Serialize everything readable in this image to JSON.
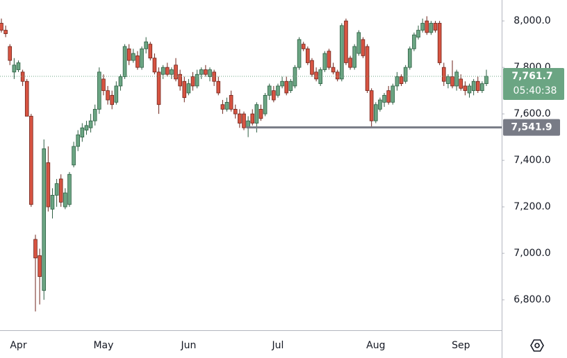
{
  "chart_data": {
    "type": "candlestick",
    "categories": [
      null,
      null,
      null,
      null,
      "Apr",
      null,
      null,
      null,
      null,
      null,
      null,
      null,
      null,
      null,
      null,
      null,
      null,
      null,
      null,
      null,
      null,
      null,
      null,
      null,
      "May",
      null,
      null,
      null,
      null,
      null,
      null,
      null,
      null,
      null,
      null,
      null,
      null,
      null,
      null,
      null,
      null,
      null,
      null,
      null,
      "Jun",
      null,
      null,
      null,
      null,
      null,
      null,
      null,
      null,
      null,
      null,
      null,
      null,
      null,
      null,
      null,
      null,
      null,
      null,
      null,
      null,
      "Jul",
      null,
      null,
      null,
      null,
      null,
      null,
      null,
      null,
      null,
      null,
      null,
      null,
      null,
      null,
      null,
      null,
      null,
      null,
      null,
      null,
      null,
      null,
      "Aug",
      null,
      null,
      null,
      null,
      null,
      null,
      null,
      null,
      null,
      null,
      null,
      null,
      null,
      null,
      null,
      null,
      null,
      null,
      null,
      "Sep",
      null,
      null,
      null,
      null,
      null,
      null
    ],
    "open": [
      7990,
      7960,
      7890,
      7780,
      7790,
      7780,
      7740,
      7590,
      7060,
      6990,
      6840,
      7390,
      7190,
      7250,
      7320,
      7200,
      7210,
      7380,
      7460,
      7500,
      7530,
      7540,
      7570,
      7620,
      7750,
      7700,
      7680,
      7650,
      7720,
      7760,
      7880,
      7830,
      7850,
      7800,
      7880,
      7900,
      7840,
      7780,
      7770,
      7800,
      7770,
      7810,
      7770,
      7740,
      7690,
      7760,
      7720,
      7770,
      7790,
      7760,
      7780,
      7740,
      7640,
      7620,
      7680,
      7620,
      7600,
      7600,
      7540,
      7600,
      7560,
      7620,
      7600,
      7680,
      7700,
      7680,
      7720,
      7740,
      7700,
      7720,
      7800,
      7900,
      7880,
      7830,
      7780,
      7730,
      7790,
      7870,
      7800,
      7780,
      7750,
      8000,
      7840,
      7800,
      7860,
      7920,
      7890,
      7700,
      7570,
      7620,
      7650,
      7700,
      7650,
      7720,
      7760,
      7740,
      7800,
      7880,
      7930,
      7960,
      8000,
      7950,
      7990,
      7990,
      7800,
      7730,
      7760,
      7720,
      7750,
      7720,
      7690,
      7700,
      7740,
      7700,
      7730
    ],
    "high": [
      8010,
      7980,
      7900,
      7840,
      7830,
      7790,
      7750,
      7600,
      7080,
      7020,
      7490,
      7460,
      7280,
      7320,
      7340,
      7280,
      7350,
      7480,
      7530,
      7560,
      7570,
      7600,
      7640,
      7800,
      7770,
      7720,
      7700,
      7740,
      7770,
      7900,
      7900,
      7880,
      7870,
      7890,
      7930,
      7910,
      7860,
      7800,
      7810,
      7820,
      7800,
      7840,
      7790,
      7760,
      7750,
      7780,
      7790,
      7800,
      7810,
      7800,
      7790,
      7760,
      7660,
      7670,
      7700,
      7640,
      7620,
      7610,
      7590,
      7620,
      7650,
      7640,
      7690,
      7730,
      7720,
      7730,
      7760,
      7760,
      7750,
      7810,
      7930,
      7910,
      7890,
      7840,
      7800,
      7800,
      7870,
      7880,
      7820,
      7790,
      7990,
      8010,
      7850,
      7900,
      7960,
      7930,
      7900,
      7710,
      7650,
      7670,
      7690,
      7720,
      7730,
      7780,
      7770,
      7810,
      7890,
      7950,
      7980,
      8010,
      8020,
      8000,
      8000,
      8000,
      7820,
      7770,
      7830,
      7790,
      7770,
      7740,
      7730,
      7750,
      7760,
      7740,
      7790
    ],
    "low": [
      7950,
      7930,
      7810,
      7750,
      7780,
      7720,
      7590,
      7200,
      6750,
      6780,
      6800,
      7180,
      7150,
      7200,
      7200,
      7190,
      7200,
      7370,
      7440,
      7480,
      7510,
      7520,
      7550,
      7600,
      7680,
      7640,
      7620,
      7640,
      7700,
      7750,
      7810,
      7820,
      7790,
      7790,
      7860,
      7830,
      7770,
      7600,
      7750,
      7760,
      7750,
      7740,
      7700,
      7650,
      7680,
      7700,
      7710,
      7750,
      7760,
      7740,
      7720,
      7680,
      7600,
      7610,
      7610,
      7580,
      7540,
      7530,
      7500,
      7550,
      7520,
      7570,
      7590,
      7660,
      7650,
      7670,
      7710,
      7680,
      7690,
      7710,
      7790,
      7870,
      7810,
      7760,
      7740,
      7720,
      7780,
      7790,
      7770,
      7740,
      7740,
      7810,
      7790,
      7790,
      7850,
      7840,
      7690,
      7540,
      7560,
      7610,
      7630,
      7640,
      7640,
      7700,
      7720,
      7730,
      7790,
      7870,
      7920,
      7950,
      7940,
      7940,
      7950,
      7810,
      7720,
      7710,
      7710,
      7700,
      7700,
      7680,
      7670,
      7680,
      7690,
      7690,
      7720
    ],
    "close": [
      7960,
      7945,
      7830,
      7810,
      7820,
      7740,
      7590,
      7210,
      6980,
      6900,
      7450,
      7200,
      7250,
      7300,
      7220,
      7260,
      7340,
      7460,
      7510,
      7540,
      7550,
      7570,
      7620,
      7780,
      7700,
      7660,
      7640,
      7720,
      7760,
      7890,
      7830,
      7860,
      7800,
      7880,
      7910,
      7840,
      7780,
      7640,
      7800,
      7770,
      7790,
      7750,
      7720,
      7670,
      7730,
      7720,
      7770,
      7790,
      7770,
      7790,
      7740,
      7690,
      7620,
      7650,
      7620,
      7600,
      7560,
      7540,
      7570,
      7560,
      7640,
      7580,
      7680,
      7720,
      7660,
      7720,
      7740,
      7690,
      7740,
      7800,
      7920,
      7880,
      7820,
      7770,
      7750,
      7790,
      7860,
      7800,
      7780,
      7750,
      7980,
      7820,
      7800,
      7890,
      7950,
      7850,
      7700,
      7570,
      7640,
      7660,
      7680,
      7650,
      7720,
      7760,
      7730,
      7800,
      7880,
      7940,
      7960,
      7990,
      7950,
      7990,
      7960,
      7820,
      7740,
      7760,
      7720,
      7780,
      7710,
      7700,
      7720,
      7740,
      7700,
      7730,
      7761.7
    ],
    "up_color": "#6ba583",
    "down_color": "#d75442",
    "ylim": [
      6669,
      8090
    ],
    "yticks": [
      {
        "value": 6800,
        "label": "6,800.0"
      },
      {
        "value": 7000,
        "label": "7,000.0"
      },
      {
        "value": 7200,
        "label": "7,200.0"
      },
      {
        "value": 7400,
        "label": "7,400.0"
      },
      {
        "value": 7600,
        "label": "7,600.0"
      },
      {
        "value": 7800,
        "label": "7,800.0"
      },
      {
        "value": 8000,
        "label": "8,000.0"
      }
    ],
    "current_price": {
      "value": 7761.7,
      "label": "7,761.7"
    },
    "countdown": "05:40:38",
    "support_line": {
      "value": 7541.9,
      "label": "7,541.9"
    }
  }
}
